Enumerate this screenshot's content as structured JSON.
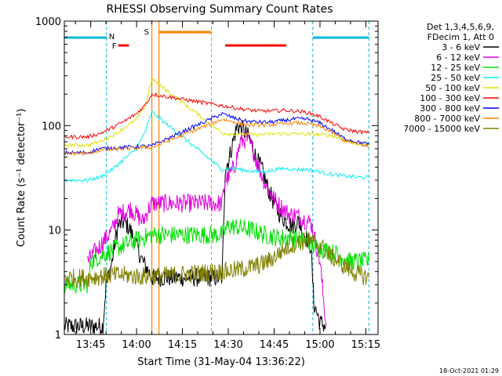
{
  "chart_data": {
    "type": "line",
    "title": "RHESSI Observing Summary Count Rates",
    "xlabel": "Start Time (31-May-04 13:36:22)",
    "ylabel": "Count Rate (s⁻¹ detector⁻¹)",
    "y_scale": "log",
    "ylim": [
      1,
      1000
    ],
    "y_tick_labels": [
      "1",
      "10",
      "100",
      "1000"
    ],
    "x_axis_start": "13:36:22",
    "xlim": [
      "13:36:22",
      "15:19:00"
    ],
    "x_tick_labels": [
      "13:45",
      "14:00",
      "14:15",
      "14:30",
      "14:45",
      "15:00",
      "15:15"
    ],
    "legend_header": [
      "Det 1,3,4,5,6,9,",
      "FDecim 1, Att 0"
    ],
    "legend_position": "right",
    "footer_date": "18-Oct-2021 01:29",
    "annotations": [
      {
        "label": "N",
        "color": "#00b8d8"
      },
      {
        "label": "F",
        "color": "#ff0000"
      },
      {
        "label": "S",
        "color": "#ff8000"
      }
    ],
    "markers": {
      "night_bars": [
        [
          "13:36:22",
          "13:50:10"
        ],
        [
          "14:57:40",
          "15:16:00"
        ]
      ],
      "night_lines": [
        "13:50:10",
        "14:57:40",
        "15:16:00"
      ],
      "flare_bars": [
        [
          "13:54:00",
          "13:57:30"
        ],
        [
          "14:29:00",
          "14:49:00"
        ]
      ],
      "saa_bar": [
        "14:07:20",
        "14:24:30"
      ],
      "saa_solid_lines": [
        "14:05:00",
        "14:07:20"
      ],
      "saa_dashed_line": "14:24:30",
      "data_gap": [
        "14:05:00",
        "14:26:30"
      ]
    },
    "series": [
      {
        "name": "3 - 6 keV",
        "color": "#000000",
        "x": [
          "13:36:22",
          "13:49:00",
          "13:50:00",
          "13:52:00",
          "13:53:00",
          "13:54:00",
          "13:56:00",
          "13:58:00",
          "14:00:00",
          "14:02:00",
          "14:04:00",
          "14:05:00",
          "14:28:00",
          "14:29:00",
          "14:30:00",
          "14:31:00",
          "14:32:00",
          "14:33:00",
          "14:35:00",
          "14:37:00",
          "14:39:00",
          "14:41:00",
          "14:43:00",
          "14:45:00",
          "14:47:00",
          "14:49:00",
          "14:51:00",
          "14:53:00",
          "14:55:00",
          "14:57:00",
          "14:58:00",
          "15:00:00",
          "15:02:00"
        ],
        "y": [
          1.2,
          1.2,
          3,
          5,
          8,
          11,
          12,
          10,
          7,
          5,
          4,
          3.5,
          3.5,
          40,
          45,
          60,
          80,
          100,
          90,
          75,
          50,
          38,
          25,
          18,
          14,
          12,
          11,
          12,
          9,
          7,
          2,
          1.3,
          1.2
        ]
      },
      {
        "name": "6 - 12 keV",
        "color": "#e000e0",
        "x": [
          "13:44:00",
          "13:48:00",
          "13:52:00",
          "13:54:00",
          "13:56:00",
          "13:58:00",
          "14:00:00",
          "14:02:00",
          "14:04:00",
          "14:05:00",
          "14:28:00",
          "14:29:00",
          "14:30:00",
          "14:32:00",
          "14:34:00",
          "14:36:00",
          "14:38:00",
          "14:40:00",
          "14:42:00",
          "14:44:00",
          "14:46:00",
          "14:48:00",
          "14:50:00",
          "14:52:00",
          "14:54:00",
          "14:56:00",
          "14:57:00",
          "14:58:00",
          "15:00:00",
          "15:02:00"
        ],
        "y": [
          5,
          7,
          10,
          14,
          15,
          16,
          14,
          12,
          16,
          18,
          18,
          30,
          32,
          40,
          70,
          75,
          60,
          40,
          28,
          22,
          18,
          16,
          14,
          14,
          13,
          12,
          12,
          9,
          5,
          1.2
        ]
      },
      {
        "name": "12 - 25 keV",
        "color": "#00e000",
        "x": [
          "13:36:22",
          "13:44:00",
          "13:45:00",
          "13:50:00",
          "13:55:00",
          "14:00:00",
          "14:05:00",
          "14:28:00",
          "14:30:00",
          "14:34:00",
          "14:38:00",
          "14:42:00",
          "14:46:00",
          "14:50:00",
          "14:54:00",
          "14:58:00",
          "15:05:00",
          "15:10:00",
          "15:16:00"
        ],
        "y": [
          3,
          3,
          5,
          6,
          7,
          8,
          9,
          9,
          11,
          10.5,
          10,
          9,
          8.5,
          8.5,
          8,
          7,
          6,
          5,
          5
        ]
      },
      {
        "name": "25 - 50 keV",
        "color": "#00f0f0",
        "x": [
          "13:36:22",
          "13:44:00",
          "13:48:00",
          "13:52:00",
          "13:56:00",
          "14:00:00",
          "14:03:00",
          "14:05:00",
          "14:28:00",
          "14:32:00",
          "14:36:00",
          "14:40:00",
          "14:44:00",
          "14:48:00",
          "14:52:00",
          "14:56:00",
          "15:00:00",
          "15:04:00",
          "15:08:00",
          "15:12:00",
          "15:16:00"
        ],
        "y": [
          30,
          30,
          32,
          38,
          48,
          60,
          90,
          135,
          38,
          39,
          37,
          36,
          37,
          39,
          38,
          38,
          36,
          34,
          33,
          32,
          32
        ]
      },
      {
        "name": "50 - 100 keV",
        "color": "#e0e000",
        "x": [
          "13:36:22",
          "13:44:00",
          "13:48:00",
          "13:52:00",
          "13:56:00",
          "14:00:00",
          "14:03:00",
          "14:05:00",
          "14:28:00",
          "14:32:00",
          "14:36:00",
          "14:40:00",
          "14:44:00",
          "14:48:00",
          "14:52:00",
          "14:56:00",
          "15:00:00",
          "15:04:00",
          "15:08:00",
          "15:12:00",
          "15:16:00"
        ],
        "y": [
          65,
          65,
          70,
          80,
          95,
          115,
          160,
          280,
          85,
          83,
          82,
          82,
          83,
          84,
          83,
          83,
          82,
          80,
          72,
          67,
          64
        ]
      },
      {
        "name": "100 - 300 keV",
        "color": "#ff0000",
        "x": [
          "13:36:22",
          "13:44:00",
          "13:48:00",
          "13:52:00",
          "13:56:00",
          "14:00:00",
          "14:03:00",
          "14:05:00",
          "14:28:00",
          "14:32:00",
          "14:36:00",
          "14:40:00",
          "14:44:00",
          "14:48:00",
          "14:52:00",
          "14:56:00",
          "15:00:00",
          "15:04:00",
          "15:08:00",
          "15:12:00",
          "15:16:00"
        ],
        "y": [
          78,
          78,
          84,
          95,
          110,
          130,
          160,
          200,
          155,
          148,
          142,
          138,
          138,
          140,
          138,
          133,
          122,
          105,
          92,
          88,
          85
        ]
      },
      {
        "name": "300 - 800 keV",
        "color": "#0000ff",
        "x": [
          "13:36:22",
          "13:44:00",
          "13:48:00",
          "13:56:00",
          "14:00:00",
          "14:05:00",
          "14:28:00",
          "14:32:00",
          "14:36:00",
          "14:40:00",
          "14:44:00",
          "14:48:00",
          "14:52:00",
          "14:56:00",
          "15:00:00",
          "15:04:00",
          "15:08:00",
          "15:12:00",
          "15:16:00"
        ],
        "y": [
          55,
          55,
          60,
          62,
          63,
          64,
          130,
          118,
          110,
          108,
          108,
          112,
          116,
          115,
          106,
          90,
          75,
          70,
          66
        ]
      },
      {
        "name": "800 - 7000 keV",
        "color": "#ff8000",
        "x": [
          "13:36:22",
          "13:44:00",
          "13:48:00",
          "13:56:00",
          "14:00:00",
          "14:05:00",
          "14:28:00",
          "14:32:00",
          "14:36:00",
          "14:40:00",
          "14:44:00",
          "14:48:00",
          "14:52:00",
          "14:56:00",
          "15:00:00",
          "15:04:00",
          "15:08:00",
          "15:12:00",
          "15:16:00"
        ],
        "y": [
          54,
          54,
          58,
          60,
          61,
          62,
          115,
          108,
          102,
          101,
          102,
          104,
          106,
          104,
          98,
          86,
          72,
          67,
          63
        ]
      },
      {
        "name": "7000 - 15000 keV",
        "color": "#808000",
        "x": [
          "13:36:22",
          "13:44:00",
          "13:48:00",
          "13:52:00",
          "13:56:00",
          "14:00:00",
          "14:05:00",
          "14:28:00",
          "14:34:00",
          "14:40:00",
          "14:44:00",
          "14:48:00",
          "14:52:00",
          "14:56:00",
          "15:00:00",
          "15:04:00",
          "15:08:00",
          "15:12:00",
          "15:16:00"
        ],
        "y": [
          3.5,
          3.5,
          3.6,
          3.7,
          3.7,
          3.6,
          3.6,
          4,
          4.2,
          4.6,
          5.2,
          6.5,
          7.5,
          8,
          7.2,
          5.5,
          4.5,
          3.8,
          3.5
        ]
      }
    ]
  }
}
